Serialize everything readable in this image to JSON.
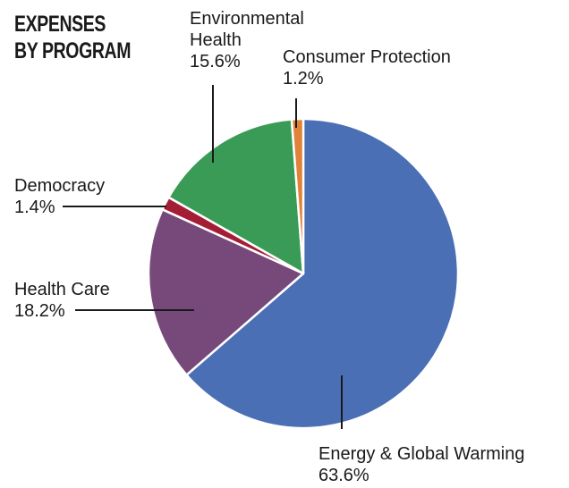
{
  "chart_data": {
    "type": "pie",
    "title": [
      "EXPENSES",
      "BY PROGRAM"
    ],
    "slices": [
      {
        "label": [
          "Energy & Global Warming"
        ],
        "pct_text": "63.6%",
        "value": 63.6,
        "color": "#4a6fb5"
      },
      {
        "label": [
          "Health Care"
        ],
        "pct_text": "18.2%",
        "value": 18.2,
        "color": "#77497a"
      },
      {
        "label": [
          "Democracy"
        ],
        "pct_text": "1.4%",
        "value": 1.4,
        "color": "#a31e35"
      },
      {
        "label": [
          "Environmental",
          "Health"
        ],
        "pct_text": "15.6%",
        "value": 15.6,
        "color": "#3a9b57"
      },
      {
        "label": [
          "Consumer Protection"
        ],
        "pct_text": "1.2%",
        "value": 1.2,
        "color": "#e0823a"
      }
    ]
  }
}
